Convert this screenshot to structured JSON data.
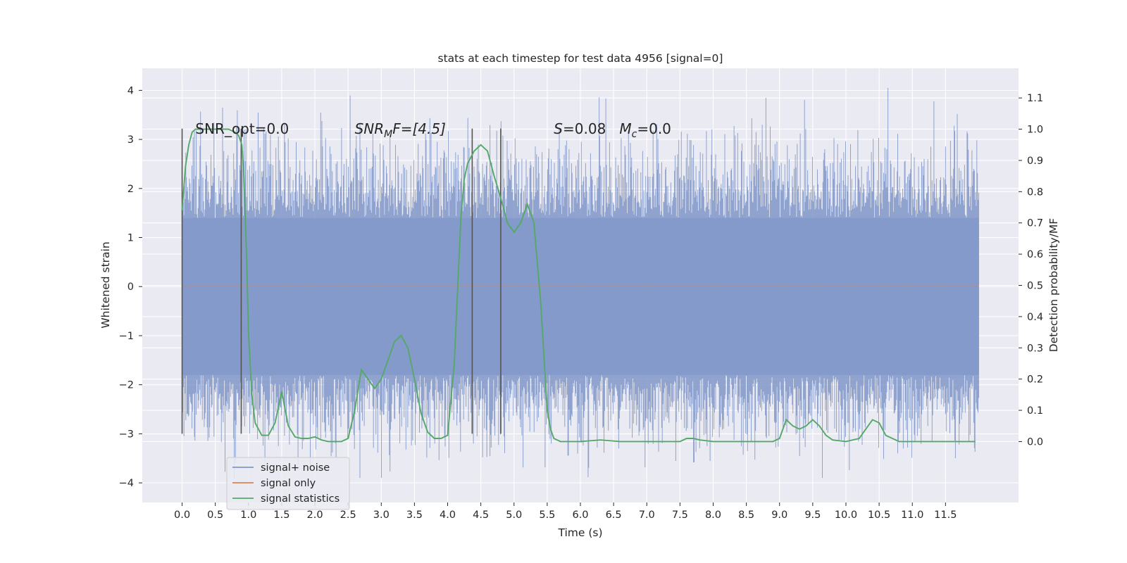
{
  "chart_data": {
    "type": "line",
    "title": "stats at each timestep for test data 4956 [signal=0]",
    "xlabel": "Time (s)",
    "ylabel": "Whitened strain",
    "ylabel_right": "Detection probability/MF",
    "xlim": [
      -0.6,
      12.6
    ],
    "ylim": [
      -4.4,
      4.45
    ],
    "ylim_right": [
      -0.195,
      1.195
    ],
    "x_ticks": [
      0.0,
      0.5,
      1.0,
      1.5,
      2.0,
      2.5,
      3.0,
      3.5,
      4.0,
      4.5,
      5.0,
      5.5,
      6.0,
      6.5,
      7.0,
      7.5,
      8.0,
      8.5,
      9.0,
      9.5,
      10.0,
      10.5,
      11.0,
      11.5
    ],
    "x_tick_labels": [
      "0.0",
      "0.5",
      "1.0",
      "1.5",
      "2.0",
      "2.5",
      "3.0",
      "3.5",
      "4.0",
      "4.5",
      "5.0",
      "5.5",
      "6.0",
      "6.5",
      "7.0",
      "7.5",
      "8.0",
      "8.5",
      "9.0",
      "9.5",
      "10.0",
      "10.5",
      "11.0",
      "11.5"
    ],
    "y_ticks": [
      -4,
      -3,
      -2,
      -1,
      0,
      1,
      2,
      3,
      4
    ],
    "y_tick_labels": [
      "−4",
      "−3",
      "−2",
      "−1",
      "0",
      "1",
      "2",
      "3",
      "4"
    ],
    "y_right_ticks": [
      0.0,
      0.1,
      0.2,
      0.3,
      0.4,
      0.5,
      0.6,
      0.7,
      0.8,
      0.9,
      1.0,
      1.1
    ],
    "y_right_tick_labels": [
      "0.0",
      "0.1",
      "0.2",
      "0.3",
      "0.4",
      "0.5",
      "0.6",
      "0.7",
      "0.8",
      "0.9",
      "1.0",
      "1.1"
    ],
    "grid": true,
    "legend_position": "lower-left",
    "colors": {
      "signal_noise": "#8096c8",
      "signal_only": "#dd8452",
      "signal_statistics": "#55a868",
      "markers": "#555555",
      "background": "#eaeaf2",
      "grid": "#ffffff"
    },
    "series": [
      {
        "name": "signal+ noise",
        "axis": "left",
        "style": "dense-noise",
        "x_range": [
          0.0,
          12.0
        ],
        "core_band": [
          -1.8,
          1.4
        ],
        "approx_peak_range": [
          -3.9,
          4.1
        ]
      },
      {
        "name": "signal only",
        "axis": "left",
        "x": [
          0.0,
          12.0
        ],
        "y": [
          0.0,
          0.0
        ]
      },
      {
        "name": "signal statistics",
        "axis": "right",
        "x": [
          0.0,
          0.05,
          0.1,
          0.15,
          0.2,
          0.3,
          0.5,
          0.7,
          0.8,
          0.85,
          0.9,
          0.93,
          0.97,
          1.0,
          1.05,
          1.1,
          1.2,
          1.3,
          1.4,
          1.5,
          1.6,
          1.7,
          1.8,
          1.9,
          2.0,
          2.1,
          2.2,
          2.3,
          2.4,
          2.5,
          2.6,
          2.7,
          2.8,
          2.9,
          3.0,
          3.1,
          3.2,
          3.3,
          3.4,
          3.5,
          3.6,
          3.7,
          3.8,
          3.9,
          4.0,
          4.1,
          4.2,
          4.25,
          4.3,
          4.4,
          4.5,
          4.6,
          4.7,
          4.8,
          4.9,
          5.0,
          5.1,
          5.2,
          5.3,
          5.4,
          5.5,
          5.55,
          5.6,
          5.7,
          5.8,
          5.9,
          6.0,
          6.3,
          6.6,
          7.0,
          7.5,
          7.6,
          7.7,
          7.8,
          8.0,
          8.5,
          8.9,
          9.0,
          9.1,
          9.2,
          9.3,
          9.4,
          9.5,
          9.6,
          9.7,
          9.8,
          10.0,
          10.2,
          10.3,
          10.4,
          10.5,
          10.6,
          10.8,
          11.0,
          11.5,
          11.95
        ],
        "y": [
          0.74,
          0.88,
          0.95,
          0.99,
          1.0,
          1.0,
          1.0,
          1.0,
          0.99,
          0.98,
          0.95,
          0.85,
          0.6,
          0.35,
          0.15,
          0.06,
          0.02,
          0.02,
          0.06,
          0.16,
          0.05,
          0.015,
          0.01,
          0.01,
          0.015,
          0.005,
          0.0,
          0.0,
          0.0,
          0.01,
          0.1,
          0.23,
          0.2,
          0.17,
          0.2,
          0.26,
          0.32,
          0.34,
          0.3,
          0.2,
          0.09,
          0.03,
          0.01,
          0.01,
          0.02,
          0.25,
          0.72,
          0.84,
          0.89,
          0.93,
          0.95,
          0.93,
          0.85,
          0.78,
          0.7,
          0.67,
          0.7,
          0.76,
          0.7,
          0.45,
          0.1,
          0.04,
          0.01,
          0.0,
          0.0,
          0.0,
          0.0,
          0.005,
          0.0,
          0.0,
          0.0,
          0.01,
          0.01,
          0.005,
          0.0,
          0.0,
          0.0,
          0.01,
          0.07,
          0.05,
          0.04,
          0.05,
          0.07,
          0.05,
          0.02,
          0.005,
          0.0,
          0.01,
          0.04,
          0.07,
          0.06,
          0.02,
          0.0,
          0.0,
          0.0,
          0.0
        ]
      }
    ],
    "vertical_markers": [
      {
        "x": 0.0,
        "y_range": [
          -3.0,
          3.22
        ]
      },
      {
        "x": 0.89,
        "y_range": [
          -3.0,
          3.22
        ]
      },
      {
        "x": 4.37,
        "y_range": [
          -3.0,
          3.22
        ]
      },
      {
        "x": 4.8,
        "y_range": [
          -3.0,
          3.22
        ]
      }
    ],
    "annotations": [
      {
        "x": 0.2,
        "y": 3.2,
        "text": "SNR_opt=0.0"
      },
      {
        "x": 2.6,
        "y": 3.2,
        "main": "SNR",
        "sub": "M",
        "rest": "F=[4.5]"
      },
      {
        "x": 5.6,
        "y": 3.2,
        "a_main": "S",
        "a_rest": "=0.08   ",
        "b_main": "M",
        "b_sub": "c",
        "b_rest": "=0.0"
      }
    ]
  }
}
